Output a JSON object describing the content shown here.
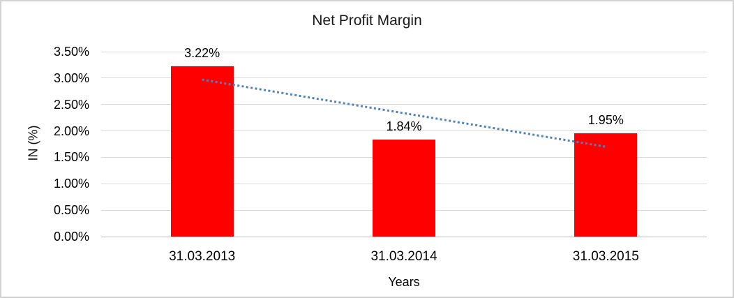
{
  "chart_data": {
    "type": "bar",
    "title": "Net Profit Margin",
    "xlabel": "Years",
    "ylabel": "IN (%)",
    "categories": [
      "31.03.2013",
      "31.03.2014",
      "31.03.2015"
    ],
    "series": [
      {
        "name": "Net Profit Margin",
        "color": "#ff0000",
        "values": [
          3.22,
          1.84,
          1.95
        ],
        "data_labels": [
          "3.22%",
          "1.84%",
          "1.95%"
        ]
      }
    ],
    "ylim": [
      0,
      3.5
    ],
    "ytick_labels_top_to_bottom": [
      "3.50%",
      "3.00%",
      "2.50%",
      "2.00%",
      "1.50%",
      "1.00%",
      "0.50%",
      "0.00%"
    ],
    "grid": "horizontal",
    "legend": "none",
    "trendline": {
      "type": "linear",
      "style": "dotted",
      "color": "#4f81bd",
      "start_value": 2.97,
      "end_value": 1.7
    }
  },
  "colors": {
    "bar": "#ff0000",
    "trendline": "#4f81bd",
    "gridline": "#d9d9d9",
    "axis_line": "#bdbdbd",
    "frame_border": "#d2d2d2",
    "background": "#ffffff"
  }
}
